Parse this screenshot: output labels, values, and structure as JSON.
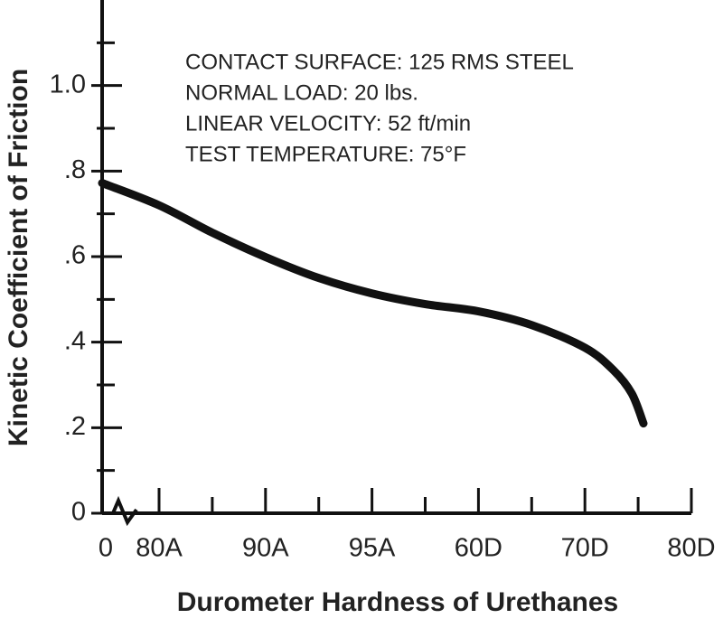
{
  "chart_data": {
    "type": "line",
    "annotations": [
      "CONTACT SURFACE: 125 RMS STEEL",
      "NORMAL LOAD: 20 lbs.",
      "LINEAR VELOCITY: 52 ft/min",
      "TEST TEMPERATURE: 75°F"
    ],
    "x_label": "Durometer Hardness of Urethanes",
    "y_label": "Kinetic Coefficient of Friction",
    "xlim": [
      0,
      6
    ],
    "xticks": [
      0,
      {
        "value": 1,
        "label": "80A"
      },
      {
        "value": 2,
        "label": "90A"
      },
      {
        "value": 3,
        "label": "95A"
      },
      {
        "value": 4,
        "label": "60D"
      },
      {
        "value": 5,
        "label": "70D"
      },
      {
        "value": 6,
        "label": "80D"
      }
    ],
    "x_axis_break": true,
    "ylim": [
      0,
      1.2
    ],
    "yticks": [
      0,
      {
        "value": 0.2,
        "label": ".2"
      },
      {
        "value": 0.4,
        "label": ".4"
      },
      {
        "value": 0.6,
        "label": ".6"
      },
      {
        "value": 0.8,
        "label": ".8"
      },
      {
        "value": 1.0,
        "label": "1.0"
      }
    ],
    "color": "#111111",
    "x": [
      0,
      1,
      1.5,
      2,
      2.5,
      3,
      3.5,
      4,
      4.5,
      5,
      5.27,
      5.44,
      5.55
    ],
    "values": [
      0.772,
      0.72,
      0.656,
      0.599,
      0.55,
      0.514,
      0.489,
      0.472,
      0.44,
      0.387,
      0.334,
      0.28,
      0.21
    ]
  }
}
